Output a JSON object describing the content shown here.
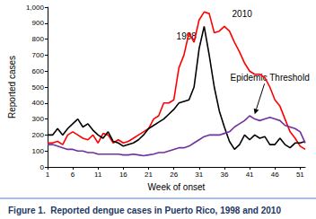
{
  "chart_data": {
    "type": "line",
    "title": "Figure 1.  Reported dengue cases in Puerto Rico, 1998 and 2010",
    "x_label": "Week of onset",
    "y_label": "Reported cases",
    "x": [
      1,
      2,
      3,
      4,
      5,
      6,
      7,
      8,
      9,
      10,
      11,
      12,
      13,
      14,
      15,
      16,
      17,
      18,
      19,
      20,
      21,
      22,
      23,
      24,
      25,
      26,
      27,
      28,
      29,
      30,
      31,
      32,
      33,
      34,
      35,
      36,
      37,
      38,
      39,
      40,
      41,
      42,
      43,
      44,
      45,
      46,
      47,
      48,
      49,
      50,
      51,
      52
    ],
    "xlim": [
      1,
      52
    ],
    "xticks": [
      1,
      6,
      11,
      16,
      21,
      26,
      31,
      36,
      41,
      46,
      51
    ],
    "ylim": [
      0,
      1000
    ],
    "yticks": [
      0,
      100,
      200,
      300,
      400,
      500,
      600,
      700,
      800,
      900,
      1000
    ],
    "grid": false,
    "series": [
      {
        "name": "2010",
        "color": "#ff0000",
        "values": [
          150,
          150,
          160,
          140,
          200,
          220,
          200,
          180,
          170,
          200,
          150,
          210,
          200,
          150,
          170,
          150,
          160,
          180,
          200,
          220,
          240,
          300,
          320,
          400,
          400,
          420,
          620,
          700,
          840,
          780,
          920,
          970,
          960,
          840,
          850,
          880,
          850,
          780,
          720,
          650,
          600,
          580,
          580,
          560,
          500,
          420,
          380,
          300,
          220,
          180,
          130,
          110
        ]
      },
      {
        "name": "1998",
        "color": "#000000",
        "values": [
          200,
          200,
          240,
          200,
          240,
          270,
          300,
          250,
          270,
          230,
          200,
          180,
          220,
          160,
          150,
          130,
          140,
          150,
          170,
          200,
          240,
          260,
          280,
          300,
          330,
          360,
          400,
          410,
          420,
          500,
          740,
          880,
          700,
          500,
          350,
          250,
          160,
          110,
          140,
          200,
          170,
          200,
          180,
          190,
          140,
          140,
          180,
          140,
          120,
          150,
          150,
          160
        ]
      },
      {
        "name": "Epidemic Threshold",
        "color": "#7030a0",
        "values": [
          140,
          140,
          130,
          120,
          110,
          110,
          100,
          100,
          90,
          90,
          80,
          80,
          80,
          80,
          80,
          75,
          75,
          80,
          75,
          70,
          75,
          80,
          90,
          90,
          100,
          110,
          120,
          120,
          130,
          150,
          170,
          190,
          200,
          200,
          200,
          210,
          220,
          250,
          270,
          290,
          320,
          300,
          290,
          300,
          310,
          300,
          290,
          260,
          250,
          240,
          220,
          150
        ]
      }
    ],
    "annotations": [
      {
        "text": "2010",
        "x": 39.5,
        "y": 960
      },
      {
        "text": "1998",
        "x": 28.5,
        "y": 820
      },
      {
        "text": "Epidemic Threshold",
        "x": 45,
        "y": 560,
        "arrow_to": [
          42,
          330
        ]
      }
    ]
  }
}
